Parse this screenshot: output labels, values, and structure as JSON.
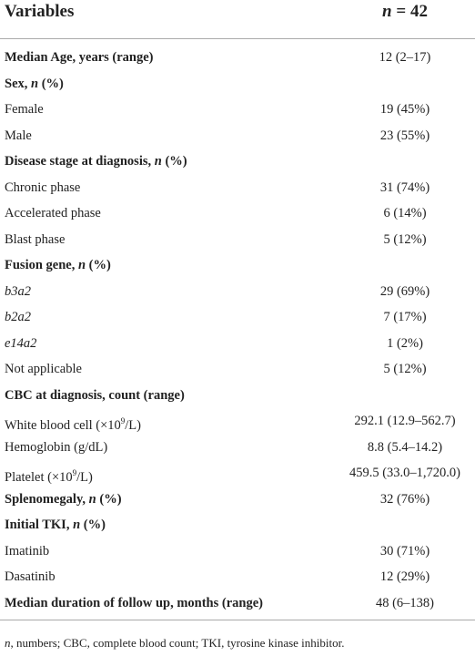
{
  "header": {
    "variables": "Variables",
    "n": [
      {
        "text": "n",
        "style": "italic"
      },
      " = 42"
    ]
  },
  "table": {
    "rows": [
      {
        "label": "Median Age, years (range)",
        "value": "12 (2–17)",
        "bold": true
      },
      {
        "label": [
          "Sex, ",
          {
            "text": "n",
            "style": "italic"
          },
          " (%)"
        ],
        "bold": true
      },
      {
        "label": "Female",
        "value": "19 (45%)"
      },
      {
        "label": "Male",
        "value": "23 (55%)"
      },
      {
        "label": [
          "Disease stage at diagnosis, ",
          {
            "text": "n",
            "style": "italic"
          },
          " (%)"
        ],
        "bold": true
      },
      {
        "label": "Chronic phase",
        "value": "31 (74%)"
      },
      {
        "label": "Accelerated phase",
        "value": "6 (14%)"
      },
      {
        "label": "Blast phase",
        "value": "5 (12%)"
      },
      {
        "label": [
          "Fusion gene, ",
          {
            "text": "n",
            "style": "italic"
          },
          " (%)"
        ],
        "bold": true
      },
      {
        "label": [
          {
            "text": "b3a2",
            "style": "italic"
          }
        ],
        "value": "29 (69%)"
      },
      {
        "label": [
          {
            "text": "b2a2",
            "style": "italic"
          }
        ],
        "value": "7 (17%)"
      },
      {
        "label": [
          {
            "text": "e14a2",
            "style": "italic"
          }
        ],
        "value": "1 (2%)"
      },
      {
        "label": "Not applicable",
        "value": "5 (12%)"
      },
      {
        "label": "CBC at diagnosis, count (range)",
        "bold": true
      },
      {
        "label": [
          "White blood cell (×10",
          {
            "text": "9",
            "style": "sup"
          },
          "/L)"
        ],
        "value": "292.1 (12.9–562.7)"
      },
      {
        "label": "Hemoglobin (g/dL)",
        "value": "8.8 (5.4–14.2)"
      },
      {
        "label": [
          "Platelet (×10",
          {
            "text": "9",
            "style": "sup"
          },
          "/L)"
        ],
        "value": "459.5 (33.0–1,720.0)"
      },
      {
        "label": [
          "Splenomegaly, ",
          {
            "text": "n",
            "style": "italic"
          },
          " (%)"
        ],
        "value": "32 (76%)",
        "bold": true
      },
      {
        "label": [
          "Initial TKI, ",
          {
            "text": "n",
            "style": "italic"
          },
          " (%)"
        ],
        "bold": true
      },
      {
        "label": "Imatinib",
        "value": "30 (71%)"
      },
      {
        "label": "Dasatinib",
        "value": "12 (29%)"
      },
      {
        "label": "Median duration of follow up, months (range)",
        "value": "48 (6–138)",
        "bold": true
      }
    ]
  },
  "footnote": [
    {
      "text": "n",
      "style": "italic"
    },
    ", numbers; CBC, complete blood count; TKI, tyrosine kinase inhibitor."
  ]
}
